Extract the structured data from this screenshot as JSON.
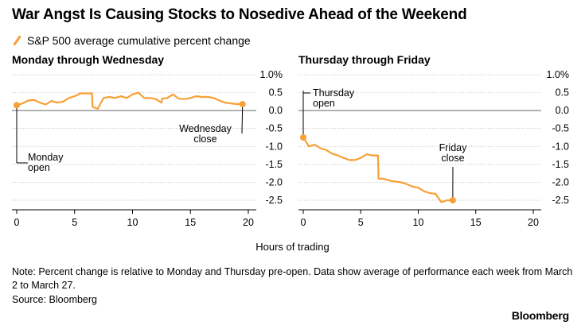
{
  "title": "War Angst Is Causing Stocks to Nosedive Ahead of the Weekend",
  "legend": {
    "label": "S&P 500 average cumulative percent change",
    "color": "#f7a035"
  },
  "xlabel": "Hours of trading",
  "note": "Note: Percent change is relative to Monday and Thursday pre-open. Data show average of performance each week from March 2 to March 27.",
  "source": "Source: Bloomberg",
  "brand": "Bloomberg",
  "chart_data": [
    {
      "type": "line",
      "title": "Monday through Wednesday",
      "xlim": [
        0,
        20
      ],
      "ylim": [
        -2.5,
        1.0
      ],
      "xticks": [
        "0",
        "5",
        "10",
        "15",
        "20"
      ],
      "yticks": [
        "1.0%",
        "0.5",
        "0.0",
        "-0.5",
        "-1.0",
        "-1.5",
        "-2.0",
        "-2.5"
      ],
      "series": [
        {
          "x": [
            0,
            0.5,
            1,
            1.5,
            2,
            2.5,
            3,
            3.5,
            4,
            4.5,
            5,
            5.5,
            6,
            6.5,
            6.55,
            7,
            7.5,
            8,
            8.5,
            9,
            9.5,
            10,
            10.5,
            11,
            11.5,
            12,
            12.5,
            12.55,
            13,
            13.5,
            14,
            14.5,
            15,
            15.5,
            16,
            16.5,
            17,
            17.5,
            18,
            18.5,
            19,
            19.5
          ],
          "y": [
            0.15,
            0.2,
            0.28,
            0.3,
            0.22,
            0.17,
            0.27,
            0.22,
            0.25,
            0.35,
            0.4,
            0.48,
            0.48,
            0.48,
            0.1,
            0.05,
            0.35,
            0.38,
            0.35,
            0.4,
            0.35,
            0.45,
            0.5,
            0.35,
            0.35,
            0.32,
            0.22,
            0.33,
            0.35,
            0.45,
            0.33,
            0.32,
            0.35,
            0.4,
            0.38,
            0.38,
            0.35,
            0.28,
            0.22,
            0.2,
            0.18,
            0.18
          ]
        }
      ],
      "annotations": [
        {
          "label": "Monday open",
          "x": 0,
          "y": 0.15,
          "text_lines": [
            "Monday",
            "open"
          ]
        },
        {
          "label": "Wednesday close",
          "x": 19.5,
          "y": 0.18,
          "text_lines": [
            "Wednesday",
            "close"
          ]
        }
      ]
    },
    {
      "type": "line",
      "title": "Thursday through Friday",
      "xlim": [
        0,
        20
      ],
      "ylim": [
        -2.5,
        1.0
      ],
      "xticks": [
        "0",
        "5",
        "10",
        "15",
        "20"
      ],
      "yticks": [
        "1.0%",
        "0.5",
        "0.0",
        "-0.5",
        "-1.0",
        "-1.5",
        "-2.0",
        "-2.5"
      ],
      "series": [
        {
          "x": [
            0,
            0.5,
            1,
            1.5,
            2,
            2.5,
            3,
            3.5,
            4,
            4.5,
            5,
            5.5,
            6,
            6.5,
            6.55,
            7,
            7.5,
            8,
            8.5,
            9,
            9.5,
            10,
            10.5,
            11,
            11.5,
            12,
            12.5,
            13
          ],
          "y": [
            -0.75,
            -1.0,
            -0.95,
            -1.05,
            -1.1,
            -1.2,
            -1.25,
            -1.32,
            -1.38,
            -1.38,
            -1.32,
            -1.22,
            -1.25,
            -1.25,
            -1.9,
            -1.9,
            -1.95,
            -1.98,
            -2.0,
            -2.05,
            -2.12,
            -2.15,
            -2.25,
            -2.3,
            -2.32,
            -2.55,
            -2.5,
            -2.5
          ]
        }
      ],
      "annotations": [
        {
          "label": "Thursday open",
          "x": 0,
          "y": -0.75,
          "text_lines": [
            "Thursday",
            "open"
          ]
        },
        {
          "label": "Friday close",
          "x": 13,
          "y": -2.5,
          "text_lines": [
            "Friday",
            "close"
          ]
        }
      ]
    }
  ]
}
